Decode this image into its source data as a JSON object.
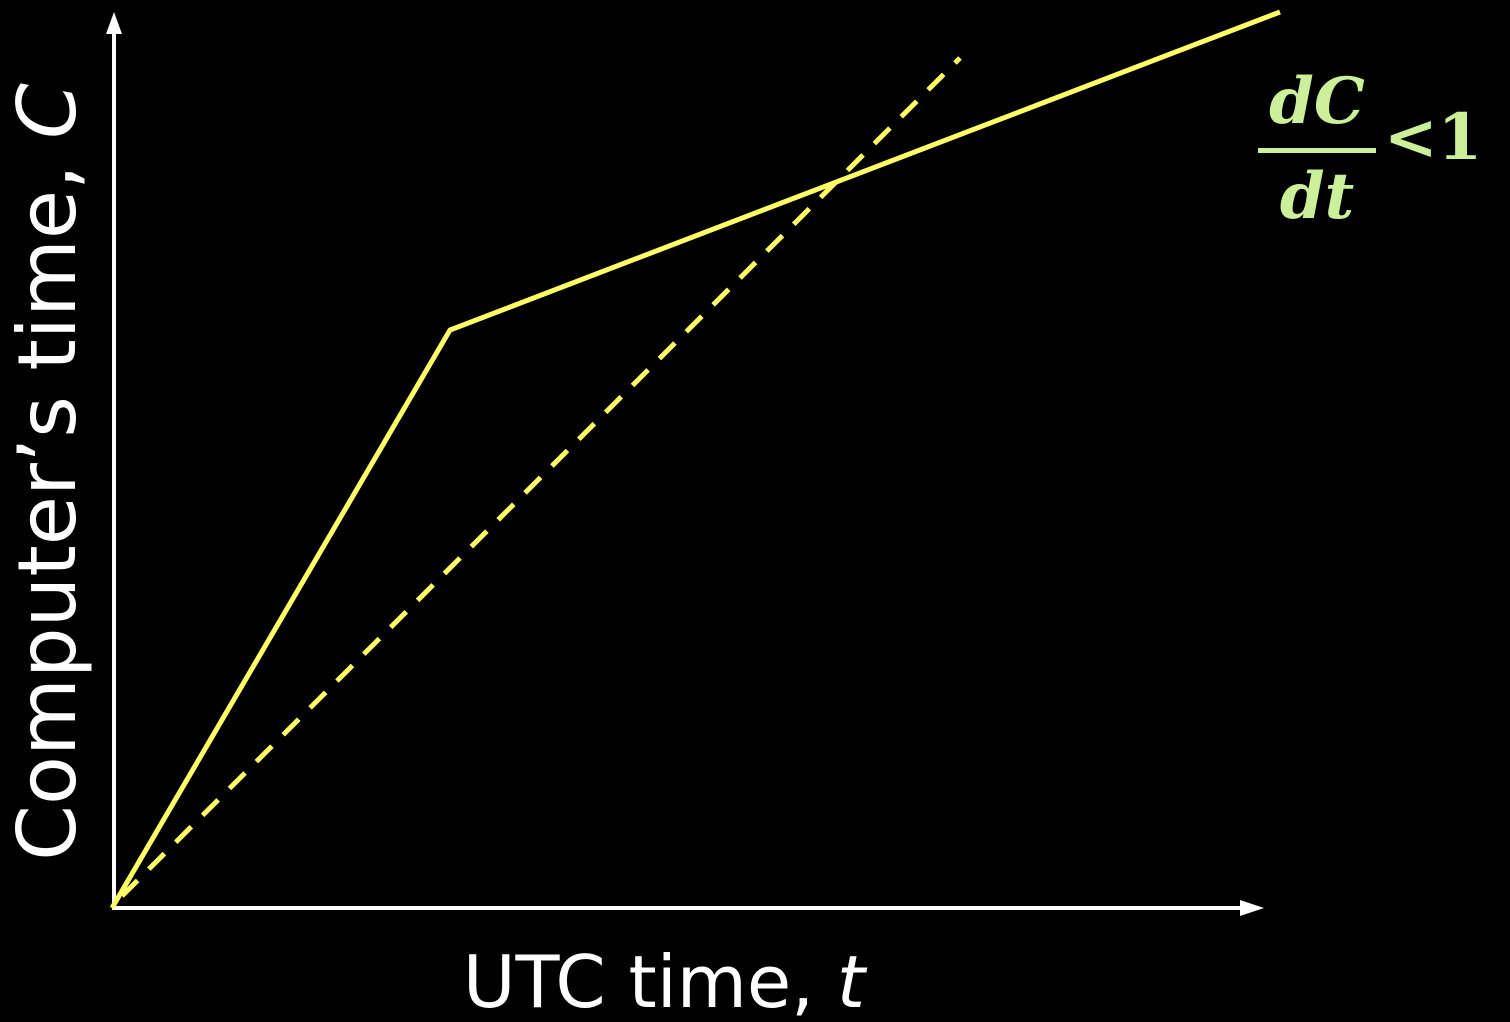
{
  "axes": {
    "y_label": "Computer’s time, ",
    "y_var": "C",
    "x_label": "UTC time, ",
    "x_var": "t"
  },
  "formula": {
    "numerator": "dC",
    "denominator": "dt",
    "relation": "<1"
  },
  "colors": {
    "background": "#000000",
    "axis": "#ffffff",
    "clock_line": "#ffff66",
    "formula": "#ccf099"
  },
  "lines": {
    "clock": "solid line from origin, steep segment then shallower segment (slope < 1)",
    "ideal": "dashed line dC/dt = 1"
  }
}
